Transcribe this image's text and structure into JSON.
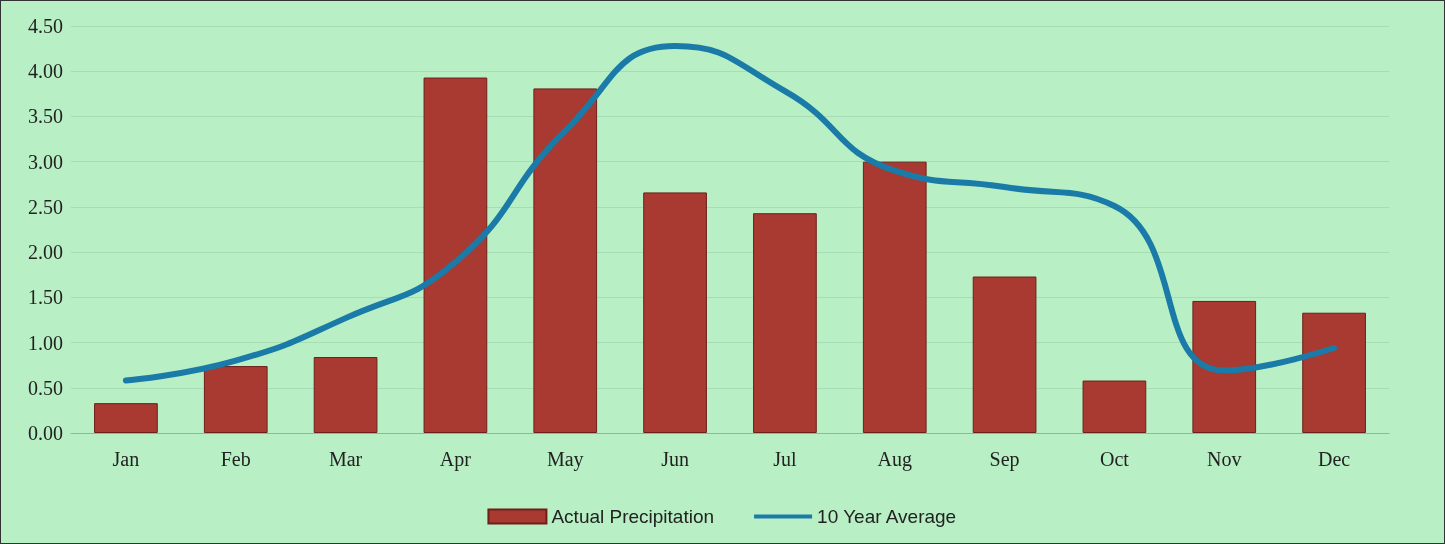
{
  "chart_data": {
    "type": "bar",
    "categories": [
      "Jan",
      "Feb",
      "Mar",
      "Apr",
      "May",
      "Jun",
      "Jul",
      "Aug",
      "Sep",
      "Oct",
      "Nov",
      "Dec"
    ],
    "series": [
      {
        "name": "Actual Precipitation",
        "color": "#a83a32",
        "values": [
          0.33,
          0.74,
          0.84,
          3.93,
          3.81,
          2.66,
          2.43,
          3.0,
          1.73,
          0.58,
          1.46,
          1.33
        ]
      },
      {
        "name": "10 Year Average",
        "type": "line",
        "color": "#1a7aa8",
        "values": [
          0.58,
          0.8,
          1.27,
          1.89,
          3.34,
          4.28,
          3.78,
          2.9,
          2.72,
          2.51,
          0.69,
          0.94
        ]
      }
    ],
    "ylim": [
      0,
      4.5
    ],
    "yticks": [
      {
        "value": 0,
        "label": "0.00"
      },
      {
        "value": 0.5,
        "label": "0.50"
      },
      {
        "value": 1,
        "label": "1.00"
      },
      {
        "value": 1.5,
        "label": "1.50"
      },
      {
        "value": 2,
        "label": "2.00"
      },
      {
        "value": 2.5,
        "label": "2.50"
      },
      {
        "value": 3,
        "label": "3.00"
      },
      {
        "value": 3.5,
        "label": "3.50"
      },
      {
        "value": 4,
        "label": "4.00"
      },
      {
        "value": 4.5,
        "label": "4.50"
      }
    ],
    "grid": "y",
    "legend": "bottom",
    "marker": "none"
  }
}
